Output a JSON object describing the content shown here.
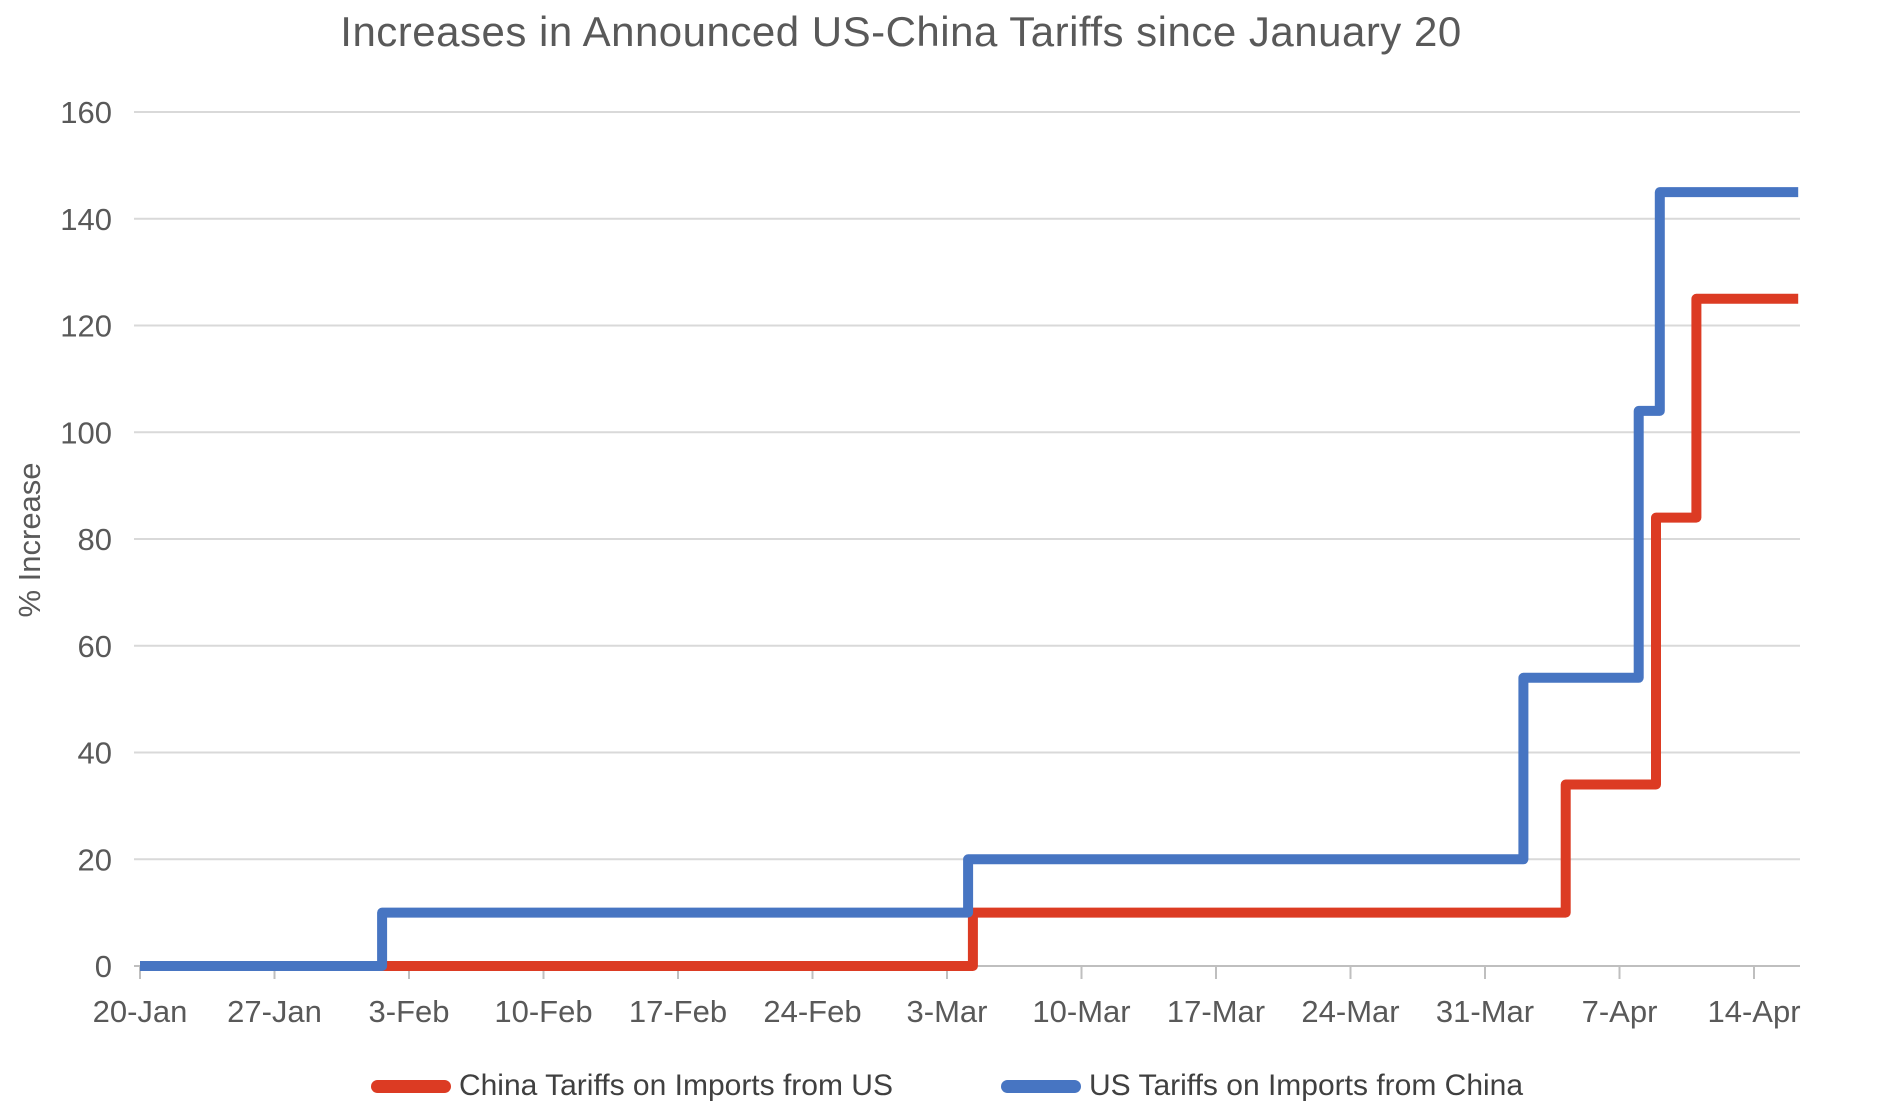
{
  "title": "Increases in Announced US-China Tariffs since January 20",
  "y_axis_label": "% Increase",
  "colors": {
    "china_line": "#DC3B23",
    "us_line": "#4775C2",
    "gridline": "#D9D9D9",
    "axis": "#BFBFBF",
    "tick_text": "#595959",
    "title_text": "#595959",
    "legend_text": "#404040",
    "background": "#FFFFFF"
  },
  "chart_data": {
    "type": "line",
    "subtype": "step",
    "title": "Increases in Announced US-China Tariffs since January 20",
    "xlabel": "",
    "ylabel": "% Increase",
    "ylim": [
      0,
      160
    ],
    "y_ticks": [
      0,
      20,
      40,
      60,
      80,
      100,
      120,
      140,
      160
    ],
    "grid": true,
    "legend_position": "bottom",
    "x_ticks": [
      {
        "label": "20-Jan",
        "day": 0
      },
      {
        "label": "27-Jan",
        "day": 7
      },
      {
        "label": "3-Feb",
        "day": 14
      },
      {
        "label": "10-Feb",
        "day": 21
      },
      {
        "label": "17-Feb",
        "day": 28
      },
      {
        "label": "24-Feb",
        "day": 35
      },
      {
        "label": "3-Mar",
        "day": 42
      },
      {
        "label": "10-Mar",
        "day": 49
      },
      {
        "label": "17-Mar",
        "day": 56
      },
      {
        "label": "24-Mar",
        "day": 63
      },
      {
        "label": "31-Mar",
        "day": 70
      },
      {
        "label": "7-Apr",
        "day": 77
      },
      {
        "label": "14-Apr",
        "day": 84
      }
    ],
    "end_day": 86.3,
    "series": [
      {
        "name": "China Tariffs on Imports from US",
        "color": "#DC3B23",
        "points": [
          {
            "date": "20-Jan",
            "day": 0,
            "value": 0
          },
          {
            "date": "4-Mar",
            "day": 43.35,
            "value": 10
          },
          {
            "date": "4-Apr",
            "day": 74.2,
            "value": 34
          },
          {
            "date": "9-Apr",
            "day": 78.9,
            "value": 84
          },
          {
            "date": "11-Apr",
            "day": 81.0,
            "value": 125
          }
        ]
      },
      {
        "name": "US Tariffs on Imports from China",
        "color": "#4775C2",
        "points": [
          {
            "date": "20-Jan",
            "day": 0,
            "value": 0
          },
          {
            "date": "1-Feb",
            "day": 12.6,
            "value": 10
          },
          {
            "date": "4-Mar",
            "day": 43.1,
            "value": 20
          },
          {
            "date": "2-Apr",
            "day": 72.0,
            "value": 54
          },
          {
            "date": "8-Apr",
            "day": 78.0,
            "value": 104
          },
          {
            "date": "9-Apr",
            "day": 79.1,
            "value": 145
          }
        ]
      }
    ]
  }
}
